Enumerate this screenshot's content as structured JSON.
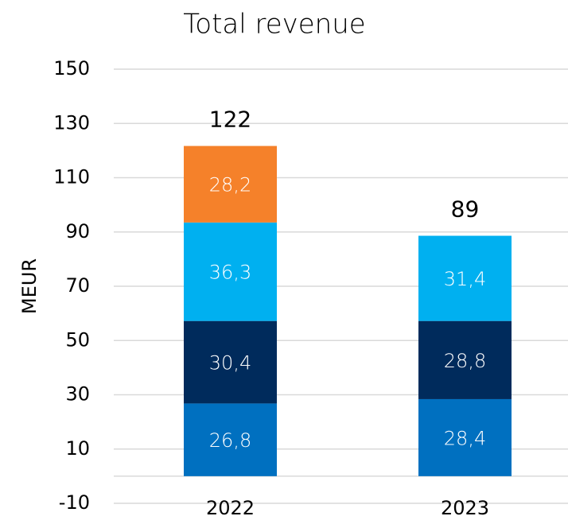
{
  "chart_data": {
    "type": "stacked_bar",
    "title": "Total revenue",
    "y_label": "MEUR",
    "categories": [
      "2022",
      "2023"
    ],
    "series": [
      {
        "color": "#0070c0",
        "values": [
          26.8,
          28.4
        ],
        "value_labels": [
          "26,8",
          "28,4"
        ]
      },
      {
        "color": "#002b5c",
        "values": [
          30.4,
          28.8
        ],
        "value_labels": [
          "30,4",
          "28,8"
        ]
      },
      {
        "color": "#00b0f0",
        "values": [
          36.3,
          31.4
        ],
        "value_labels": [
          "36,3",
          "31,4"
        ]
      },
      {
        "color": "#f5812a",
        "values": [
          28.2,
          null
        ],
        "value_labels": [
          "28,2",
          null
        ]
      }
    ],
    "totals": [
      122,
      89
    ],
    "ylim": [
      -10,
      150
    ],
    "yticks": [
      -10,
      10,
      30,
      50,
      70,
      90,
      110,
      130,
      150
    ],
    "grid": true
  }
}
